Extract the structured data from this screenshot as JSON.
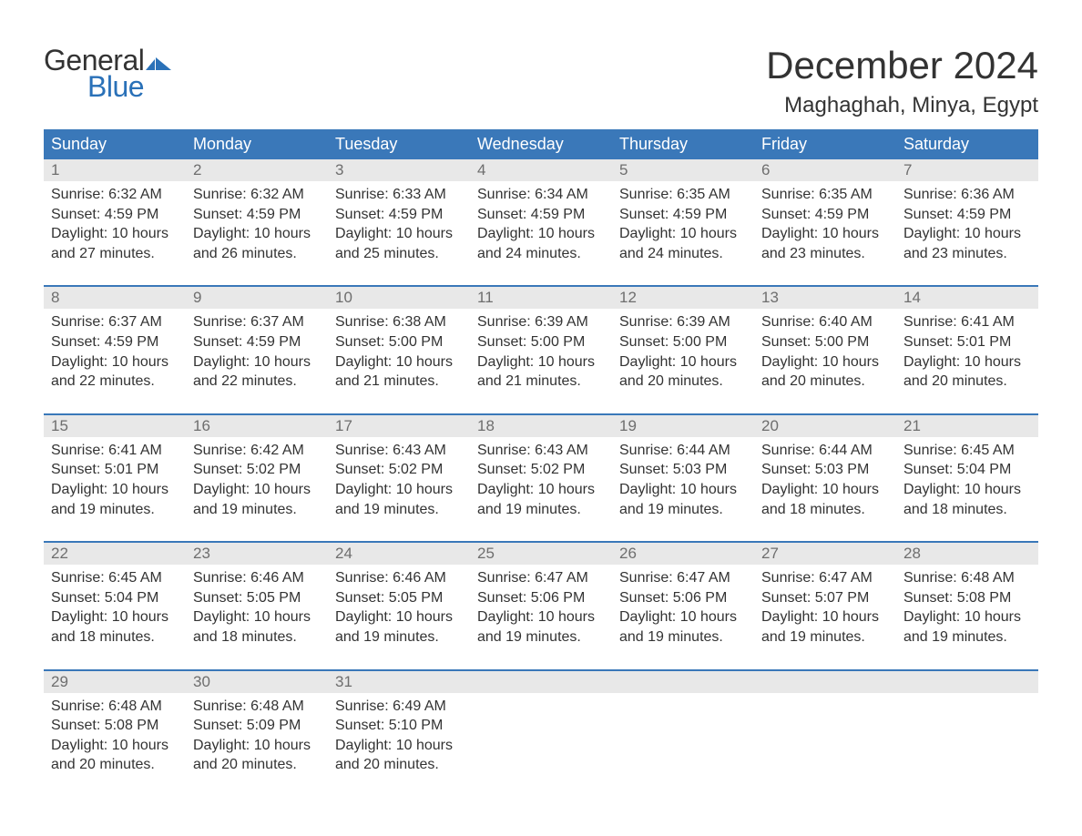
{
  "brand": {
    "word1": "General",
    "word2": "Blue",
    "word1_color": "#333333",
    "word2_color": "#2a71b8",
    "icon_color": "#2a71b8"
  },
  "title": {
    "month": "December 2024",
    "location": "Maghaghah, Minya, Egypt"
  },
  "colors": {
    "header_bg": "#3a78b9",
    "header_text": "#ffffff",
    "week_separator": "#3a78b9",
    "daynum_bg": "#e8e8e8",
    "daynum_text": "#6e6e6e",
    "body_text": "#333333",
    "background": "#ffffff"
  },
  "day_names": [
    "Sunday",
    "Monday",
    "Tuesday",
    "Wednesday",
    "Thursday",
    "Friday",
    "Saturday"
  ],
  "weeks": [
    [
      {
        "n": "1",
        "sunrise": "6:32 AM",
        "sunset": "4:59 PM",
        "daylight": "10 hours and 27 minutes."
      },
      {
        "n": "2",
        "sunrise": "6:32 AM",
        "sunset": "4:59 PM",
        "daylight": "10 hours and 26 minutes."
      },
      {
        "n": "3",
        "sunrise": "6:33 AM",
        "sunset": "4:59 PM",
        "daylight": "10 hours and 25 minutes."
      },
      {
        "n": "4",
        "sunrise": "6:34 AM",
        "sunset": "4:59 PM",
        "daylight": "10 hours and 24 minutes."
      },
      {
        "n": "5",
        "sunrise": "6:35 AM",
        "sunset": "4:59 PM",
        "daylight": "10 hours and 24 minutes."
      },
      {
        "n": "6",
        "sunrise": "6:35 AM",
        "sunset": "4:59 PM",
        "daylight": "10 hours and 23 minutes."
      },
      {
        "n": "7",
        "sunrise": "6:36 AM",
        "sunset": "4:59 PM",
        "daylight": "10 hours and 23 minutes."
      }
    ],
    [
      {
        "n": "8",
        "sunrise": "6:37 AM",
        "sunset": "4:59 PM",
        "daylight": "10 hours and 22 minutes."
      },
      {
        "n": "9",
        "sunrise": "6:37 AM",
        "sunset": "4:59 PM",
        "daylight": "10 hours and 22 minutes."
      },
      {
        "n": "10",
        "sunrise": "6:38 AM",
        "sunset": "5:00 PM",
        "daylight": "10 hours and 21 minutes."
      },
      {
        "n": "11",
        "sunrise": "6:39 AM",
        "sunset": "5:00 PM",
        "daylight": "10 hours and 21 minutes."
      },
      {
        "n": "12",
        "sunrise": "6:39 AM",
        "sunset": "5:00 PM",
        "daylight": "10 hours and 20 minutes."
      },
      {
        "n": "13",
        "sunrise": "6:40 AM",
        "sunset": "5:00 PM",
        "daylight": "10 hours and 20 minutes."
      },
      {
        "n": "14",
        "sunrise": "6:41 AM",
        "sunset": "5:01 PM",
        "daylight": "10 hours and 20 minutes."
      }
    ],
    [
      {
        "n": "15",
        "sunrise": "6:41 AM",
        "sunset": "5:01 PM",
        "daylight": "10 hours and 19 minutes."
      },
      {
        "n": "16",
        "sunrise": "6:42 AM",
        "sunset": "5:02 PM",
        "daylight": "10 hours and 19 minutes."
      },
      {
        "n": "17",
        "sunrise": "6:43 AM",
        "sunset": "5:02 PM",
        "daylight": "10 hours and 19 minutes."
      },
      {
        "n": "18",
        "sunrise": "6:43 AM",
        "sunset": "5:02 PM",
        "daylight": "10 hours and 19 minutes."
      },
      {
        "n": "19",
        "sunrise": "6:44 AM",
        "sunset": "5:03 PM",
        "daylight": "10 hours and 19 minutes."
      },
      {
        "n": "20",
        "sunrise": "6:44 AM",
        "sunset": "5:03 PM",
        "daylight": "10 hours and 18 minutes."
      },
      {
        "n": "21",
        "sunrise": "6:45 AM",
        "sunset": "5:04 PM",
        "daylight": "10 hours and 18 minutes."
      }
    ],
    [
      {
        "n": "22",
        "sunrise": "6:45 AM",
        "sunset": "5:04 PM",
        "daylight": "10 hours and 18 minutes."
      },
      {
        "n": "23",
        "sunrise": "6:46 AM",
        "sunset": "5:05 PM",
        "daylight": "10 hours and 18 minutes."
      },
      {
        "n": "24",
        "sunrise": "6:46 AM",
        "sunset": "5:05 PM",
        "daylight": "10 hours and 19 minutes."
      },
      {
        "n": "25",
        "sunrise": "6:47 AM",
        "sunset": "5:06 PM",
        "daylight": "10 hours and 19 minutes."
      },
      {
        "n": "26",
        "sunrise": "6:47 AM",
        "sunset": "5:06 PM",
        "daylight": "10 hours and 19 minutes."
      },
      {
        "n": "27",
        "sunrise": "6:47 AM",
        "sunset": "5:07 PM",
        "daylight": "10 hours and 19 minutes."
      },
      {
        "n": "28",
        "sunrise": "6:48 AM",
        "sunset": "5:08 PM",
        "daylight": "10 hours and 19 minutes."
      }
    ],
    [
      {
        "n": "29",
        "sunrise": "6:48 AM",
        "sunset": "5:08 PM",
        "daylight": "10 hours and 20 minutes."
      },
      {
        "n": "30",
        "sunrise": "6:48 AM",
        "sunset": "5:09 PM",
        "daylight": "10 hours and 20 minutes."
      },
      {
        "n": "31",
        "sunrise": "6:49 AM",
        "sunset": "5:10 PM",
        "daylight": "10 hours and 20 minutes."
      },
      null,
      null,
      null,
      null
    ]
  ],
  "labels": {
    "sunrise": "Sunrise: ",
    "sunset": "Sunset: ",
    "daylight": "Daylight: "
  }
}
